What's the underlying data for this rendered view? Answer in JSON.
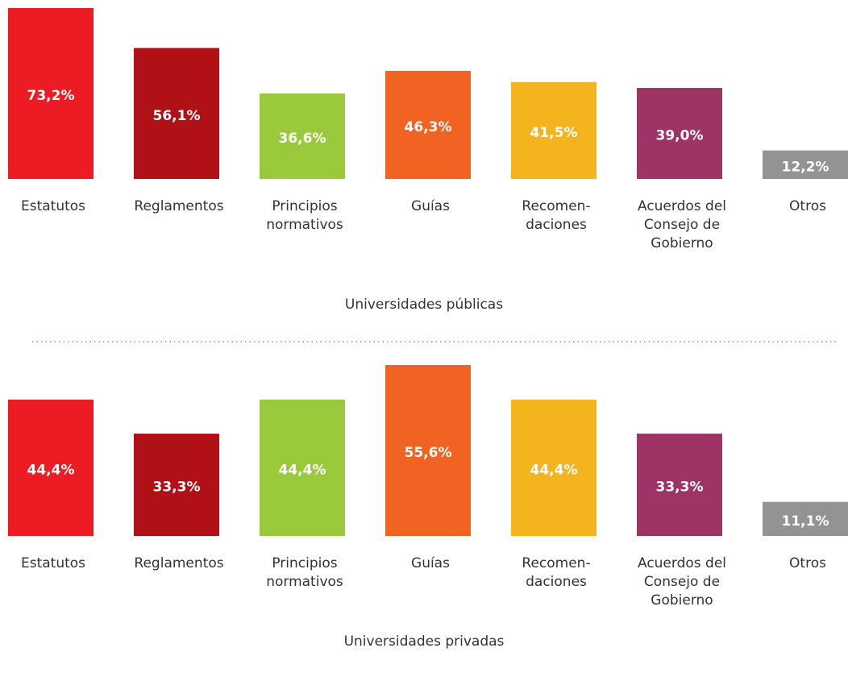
{
  "chart_data": [
    {
      "type": "bar",
      "title": "Universidades públicas",
      "categories": [
        [
          "Estatutos"
        ],
        [
          "Reglamentos"
        ],
        [
          "Principios",
          "normativos"
        ],
        [
          "Guías"
        ],
        [
          "Recomen-",
          "daciones"
        ],
        [
          "Acuerdos del",
          "Consejo de",
          "Gobierno"
        ],
        [
          "Otros"
        ]
      ],
      "values": [
        73.2,
        56.1,
        36.6,
        46.3,
        41.5,
        39.0,
        12.2
      ],
      "value_labels": [
        "73,2%",
        "56,1%",
        "36,6%",
        "46,3%",
        "41,5%",
        "39,0%",
        "12,2%"
      ],
      "colors": [
        "#ed1c24",
        "#b01117",
        "#9bc93c",
        "#f06322",
        "#f4b41e",
        "#9e3366",
        "#939393"
      ],
      "ylim": [
        0,
        73.2
      ]
    },
    {
      "type": "bar",
      "title": "Universidades privadas",
      "categories": [
        [
          "Estatutos"
        ],
        [
          "Reglamentos"
        ],
        [
          "Principios",
          "normativos"
        ],
        [
          "Guías"
        ],
        [
          "Recomen-",
          "daciones"
        ],
        [
          "Acuerdos del",
          "Consejo de",
          "Gobierno"
        ],
        [
          "Otros"
        ]
      ],
      "values": [
        44.4,
        33.3,
        44.4,
        55.6,
        44.4,
        33.3,
        11.1
      ],
      "value_labels": [
        "44,4%",
        "33,3%",
        "44,4%",
        "55,6%",
        "44,4%",
        "33,3%",
        "11,1%"
      ],
      "colors": [
        "#ed1c24",
        "#b01117",
        "#9bc93c",
        "#f06322",
        "#f4b41e",
        "#9e3366",
        "#939393"
      ],
      "ylim": [
        0,
        55.6
      ]
    }
  ]
}
